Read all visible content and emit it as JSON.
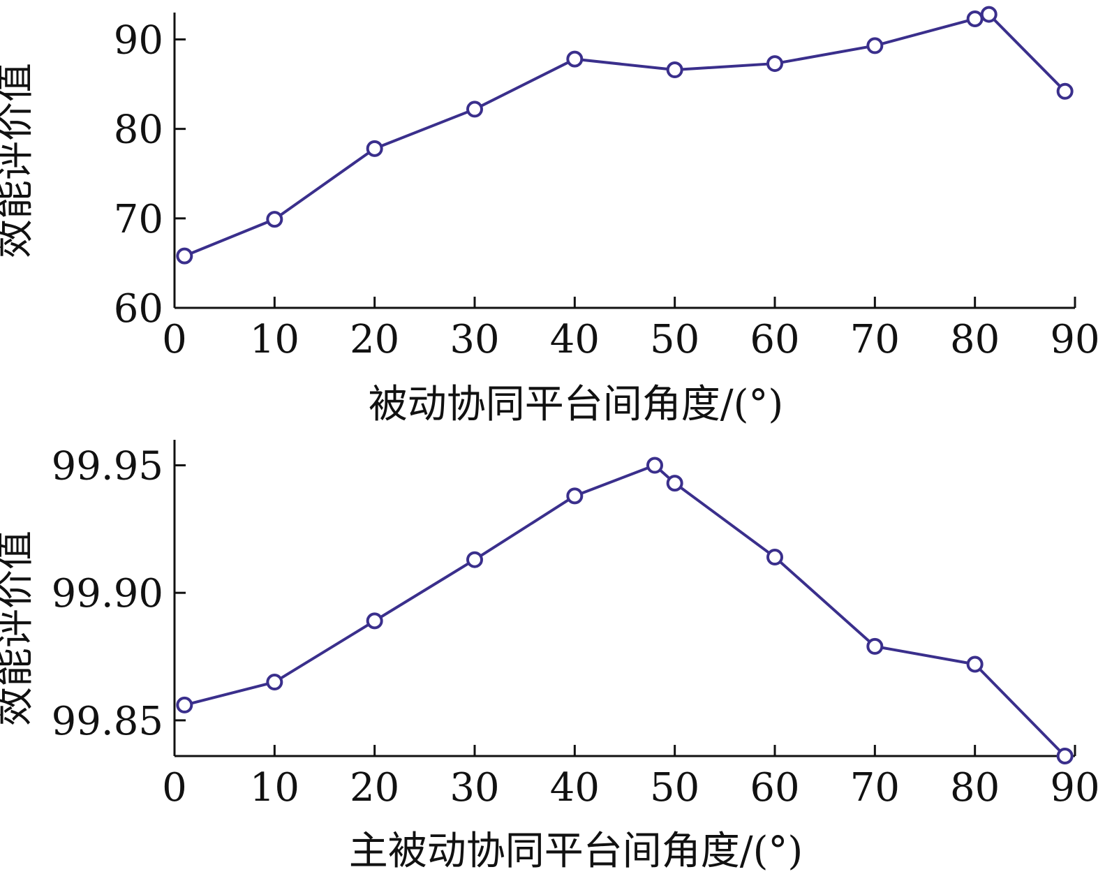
{
  "colors": {
    "series": "#3a2f8c",
    "axis": "#111111",
    "background": "#ffffff"
  },
  "chart_data": [
    {
      "type": "line",
      "xlabel": "被动协同平台间角度/(°)",
      "ylabel": "效能评价值",
      "xlim": [
        0,
        90
      ],
      "ylim": [
        60,
        93
      ],
      "xticks": [
        "0",
        "10",
        "20",
        "30",
        "40",
        "50",
        "60",
        "70",
        "80",
        "90"
      ],
      "yticks": [
        "60",
        "70",
        "80",
        "90"
      ],
      "grid": false,
      "marker": "circle",
      "series": [
        {
          "x": [
            1,
            10,
            20,
            30,
            40,
            50,
            60,
            70,
            80,
            81.4,
            89
          ],
          "y": [
            65.8,
            69.9,
            77.8,
            82.2,
            87.8,
            86.6,
            87.3,
            89.3,
            92.3,
            92.8,
            84.2
          ]
        }
      ]
    },
    {
      "type": "line",
      "xlabel": "主被动协同平台间角度/(°)",
      "ylabel": "效能评价值",
      "xlim": [
        0,
        90
      ],
      "ylim": [
        99.836,
        99.96
      ],
      "xticks": [
        "0",
        "10",
        "20",
        "30",
        "40",
        "50",
        "60",
        "70",
        "80",
        "90"
      ],
      "yticks": [
        "99.85",
        "99.90",
        "99.95"
      ],
      "grid": false,
      "marker": "circle",
      "series": [
        {
          "x": [
            1,
            10,
            20,
            30,
            40,
            48,
            50,
            60,
            70,
            80,
            89
          ],
          "y": [
            99.856,
            99.865,
            99.889,
            99.913,
            99.938,
            99.95,
            99.943,
            99.914,
            99.879,
            99.872,
            99.836
          ]
        }
      ]
    }
  ]
}
